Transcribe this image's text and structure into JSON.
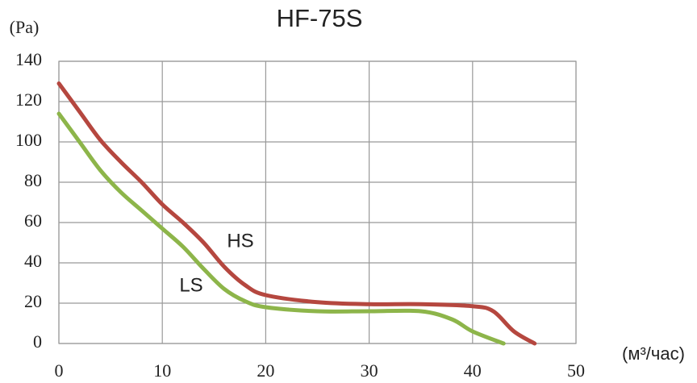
{
  "chart_data": {
    "type": "line",
    "title": "HF-75S",
    "y_label": "(Pa)",
    "x_label": "(м³/час)",
    "xlim": [
      0,
      50
    ],
    "xticks": [
      0,
      10,
      20,
      30,
      40,
      50
    ],
    "ylim": [
      0,
      140
    ],
    "yticks": [
      0,
      20,
      40,
      60,
      80,
      100,
      120,
      140
    ],
    "grid": true,
    "series": [
      {
        "name": "HS",
        "color": "#b5473f",
        "x": [
          0,
          2,
          4,
          6,
          8,
          10,
          12,
          14,
          16,
          18,
          20,
          25,
          30,
          35,
          40,
          42,
          44,
          46
        ],
        "values": [
          129,
          115,
          101,
          90,
          80,
          69,
          60,
          50,
          38,
          29,
          24,
          20.5,
          19.5,
          19.5,
          18.5,
          16,
          6,
          0
        ]
      },
      {
        "name": "LS",
        "color": "#8db54a",
        "x": [
          0,
          2,
          4,
          6,
          8,
          10,
          12,
          14,
          16,
          18,
          20,
          25,
          30,
          35,
          38,
          40,
          43
        ],
        "values": [
          114,
          100,
          86,
          75,
          66,
          57,
          48,
          37,
          27,
          21,
          18,
          16,
          16,
          16,
          12,
          6,
          0
        ]
      }
    ]
  }
}
